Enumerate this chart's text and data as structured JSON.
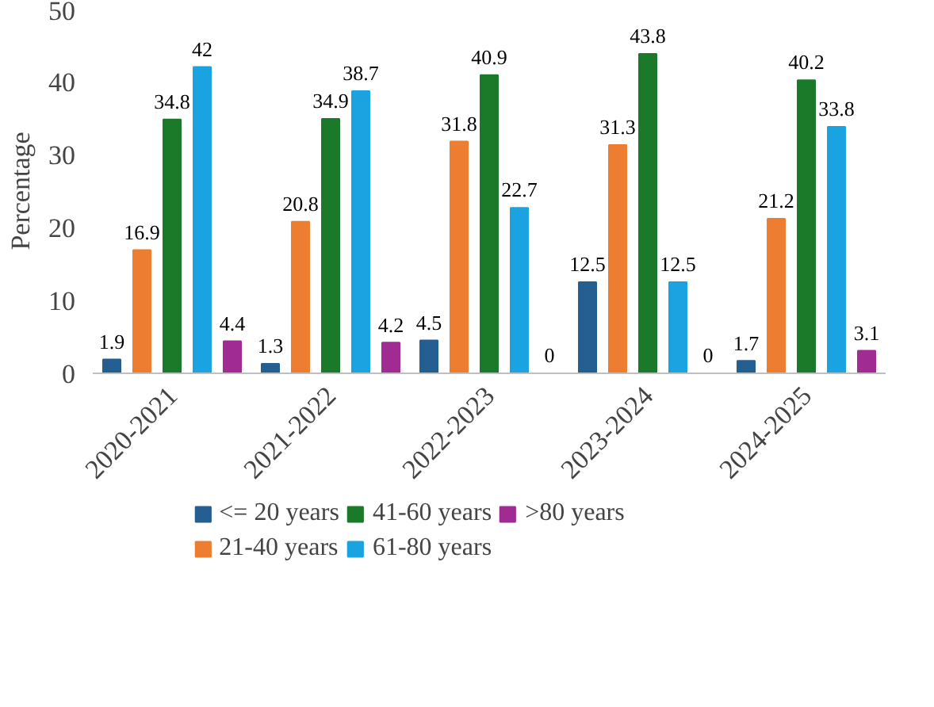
{
  "chart_data": {
    "type": "bar",
    "ylabel": "Percentage",
    "categories": [
      "2020-2021",
      "2021-2022",
      "2022-2023",
      "2023-2024",
      "2024-2025"
    ],
    "series": [
      {
        "name": "<= 20 years",
        "color": "#255e91",
        "values": [
          1.9,
          1.3,
          4.5,
          12.5,
          1.7
        ]
      },
      {
        "name": "21-40 years",
        "color": "#ed7d31",
        "values": [
          16.9,
          20.8,
          31.8,
          31.3,
          21.2
        ]
      },
      {
        "name": "41-60 years",
        "color": "#1a7a2a",
        "values": [
          34.8,
          34.9,
          40.9,
          43.8,
          40.2
        ]
      },
      {
        "name": "61-80 years",
        "color": "#1aa3e0",
        "values": [
          42,
          38.7,
          22.7,
          12.5,
          33.8
        ]
      },
      {
        "name": ">80 years",
        "color": "#a02b93",
        "values": [
          4.4,
          4.2,
          0,
          0,
          3.1
        ]
      }
    ],
    "ylim": [
      0,
      50
    ],
    "yticks": [
      0,
      10,
      20,
      30,
      40,
      50
    ],
    "grid": false,
    "legend": "bottom",
    "data_labels": true
  }
}
